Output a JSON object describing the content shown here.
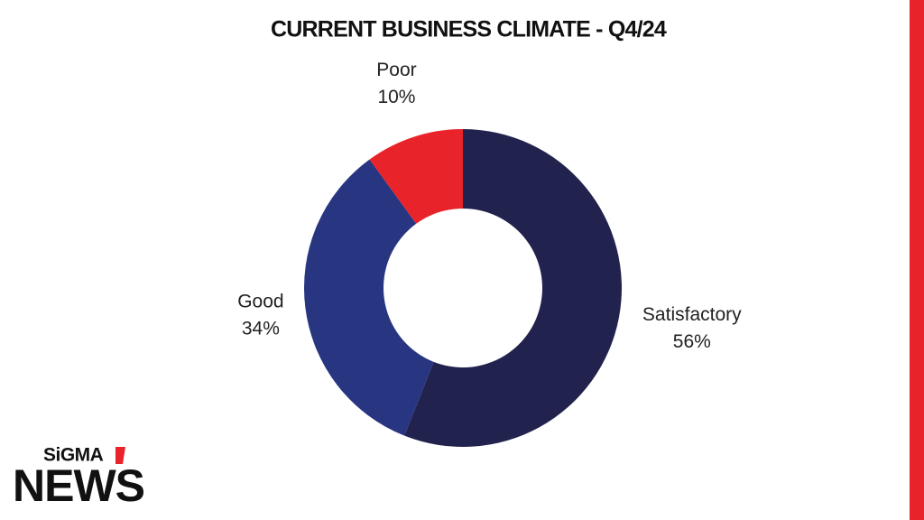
{
  "chart_data": {
    "type": "pie",
    "title": "CURRENT BUSINESS CLIMATE - Q4/24",
    "categories": [
      "Satisfactory",
      "Good",
      "Poor"
    ],
    "values": [
      56,
      34,
      10
    ],
    "value_labels": [
      "56%",
      "34%",
      "10%"
    ],
    "colors": [
      "#22224e",
      "#283580",
      "#e8232a"
    ],
    "donut": true
  },
  "branding": {
    "brand": "SiGMA",
    "name": "NEWS"
  }
}
